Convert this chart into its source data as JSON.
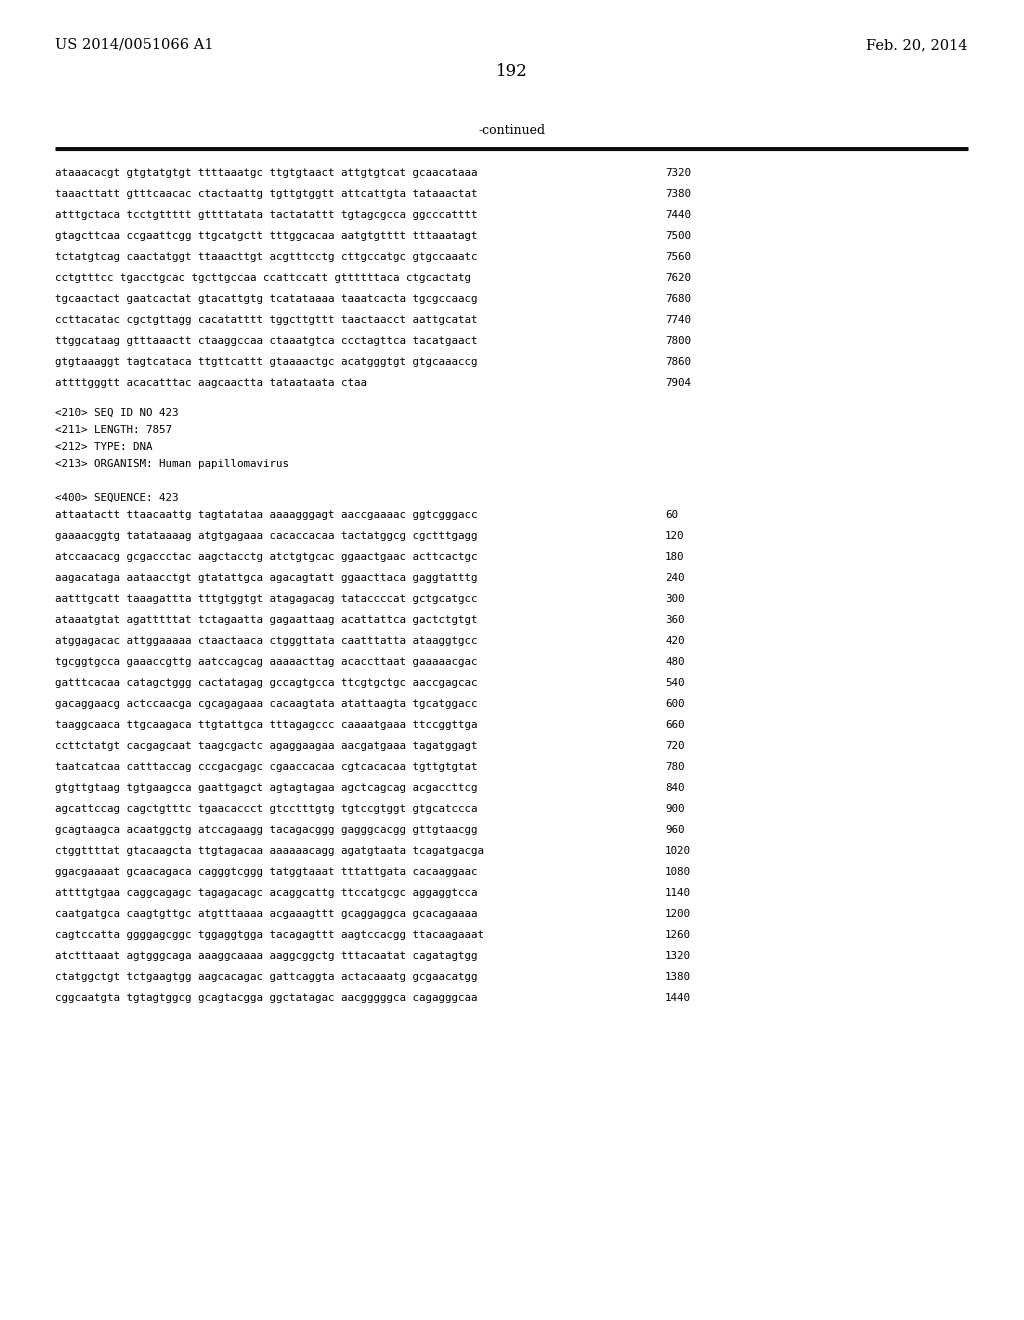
{
  "background_color": "#ffffff",
  "page_header_left": "US 2014/0051066 A1",
  "page_header_right": "Feb. 20, 2014",
  "page_number": "192",
  "continued_label": "-continued",
  "top_lines": [
    {
      "seq": "ataaacacgt gtgtatgtgt ttttaaatgc ttgtgtaact attgtgtcat gcaacataaa",
      "num": "7320"
    },
    {
      "seq": "taaacttatt gtttcaacac ctactaattg tgttgtggtt attcattgta tataaactat",
      "num": "7380"
    },
    {
      "seq": "atttgctaca tcctgttttt gttttatata tactatattt tgtagcgcca ggcccatttt",
      "num": "7440"
    },
    {
      "seq": "gtagcttcaa ccgaattcgg ttgcatgctt tttggcacaa aatgtgtttt tttaaatagt",
      "num": "7500"
    },
    {
      "seq": "tctatgtcag caactatggt ttaaacttgt acgtttcctg cttgccatgc gtgccaaatc",
      "num": "7560"
    },
    {
      "seq": "cctgtttcc tgacctgcac tgcttgccaa ccattccatt gttttttaca ctgcactatg",
      "num": "7620"
    },
    {
      "seq": "tgcaactact gaatcactat gtacattgtg tcatataaaa taaatcacta tgcgccaacg",
      "num": "7680"
    },
    {
      "seq": "ccttacatac cgctgttagg cacatatttt tggcttgttt taactaacct aattgcatat",
      "num": "7740"
    },
    {
      "seq": "ttggcataag gtttaaactt ctaaggccaa ctaaatgtca ccctagttca tacatgaact",
      "num": "7800"
    },
    {
      "seq": "gtgtaaaggt tagtcataca ttgttcattt gtaaaactgc acatgggtgt gtgcaaaccg",
      "num": "7860"
    },
    {
      "seq": "attttgggtt acacatttac aagcaactta tataataata ctaa",
      "num": "7904"
    }
  ],
  "metadata_lines": [
    "<210> SEQ ID NO 423",
    "<211> LENGTH: 7857",
    "<212> TYPE: DNA",
    "<213> ORGANISM: Human papillomavirus",
    "",
    "<400> SEQUENCE: 423"
  ],
  "sequence_lines": [
    {
      "seq": "attaatactt ttaacaattg tagtatataa aaaagggagt aaccgaaaac ggtcgggacc",
      "num": "60"
    },
    {
      "seq": "gaaaacggtg tatataaaag atgtgagaaa cacaccacaa tactatggcg cgctttgagg",
      "num": "120"
    },
    {
      "seq": "atccaacacg gcgaccctac aagctacctg atctgtgcac ggaactgaac acttcactgc",
      "num": "180"
    },
    {
      "seq": "aagacataga aataacctgt gtatattgca agacagtatt ggaacttaca gaggtatttg",
      "num": "240"
    },
    {
      "seq": "aatttgcatt taaagattta tttgtggtgt atagagacag tataccccat gctgcatgcc",
      "num": "300"
    },
    {
      "seq": "ataaatgtat agatttttat tctagaatta gagaattaag acattattca gactctgtgt",
      "num": "360"
    },
    {
      "seq": "atggagacac attggaaaaa ctaactaaca ctgggttata caatttatta ataaggtgcc",
      "num": "420"
    },
    {
      "seq": "tgcggtgcca gaaaccgttg aatccagcag aaaaacttag acaccttaat gaaaaacgac",
      "num": "480"
    },
    {
      "seq": "gatttcacaa catagctggg cactatagag gccagtgcca ttcgtgctgc aaccgagcac",
      "num": "540"
    },
    {
      "seq": "gacaggaacg actccaacga cgcagagaaa cacaagtata atattaagta tgcatggacc",
      "num": "600"
    },
    {
      "seq": "taaggcaaca ttgcaagaca ttgtattgca tttagagccc caaaatgaaa ttccggttga",
      "num": "660"
    },
    {
      "seq": "ccttctatgt cacgagcaat taagcgactc agaggaagaa aacgatgaaa tagatggagt",
      "num": "720"
    },
    {
      "seq": "taatcatcaa catttaccag cccgacgagc cgaaccacaa cgtcacacaa tgttgtgtat",
      "num": "780"
    },
    {
      "seq": "gtgttgtaag tgtgaagcca gaattgagct agtagtagaa agctcagcag acgaccttcg",
      "num": "840"
    },
    {
      "seq": "agcattccag cagctgtttc tgaacaccct gtcctttgtg tgtccgtggt gtgcatccca",
      "num": "900"
    },
    {
      "seq": "gcagtaagca acaatggctg atccagaagg tacagacggg gagggcacgg gttgtaacgg",
      "num": "960"
    },
    {
      "seq": "ctggttttat gtacaagcta ttgtagacaa aaaaaacagg agatgtaata tcagatgacga",
      "num": "1020"
    },
    {
      "seq": "ggacgaaaat gcaacagaca cagggtcggg tatggtaaat tttattgata cacaaggaac",
      "num": "1080"
    },
    {
      "seq": "attttgtgaa caggcagagc tagagacagc acaggcattg ttccatgcgc aggaggtcca",
      "num": "1140"
    },
    {
      "seq": "caatgatgca caagtgttgc atgtttaaaa acgaaagttt gcaggaggca gcacagaaaa",
      "num": "1200"
    },
    {
      "seq": "cagtccatta ggggagcggc tggaggtgga tacagagttt aagtccacgg ttacaagaaat",
      "num": "1260"
    },
    {
      "seq": "atctttaaat agtgggcaga aaaggcaaaa aaggcggctg tttacaatat cagatagtgg",
      "num": "1320"
    },
    {
      "seq": "ctatggctgt tctgaagtgg aagcacagac gattcaggta actacaaatg gcgaacatgg",
      "num": "1380"
    },
    {
      "seq": "cggcaatgta tgtagtggcg gcagtacgga ggctatagac aacgggggca cagagggcaa",
      "num": "1440"
    }
  ]
}
